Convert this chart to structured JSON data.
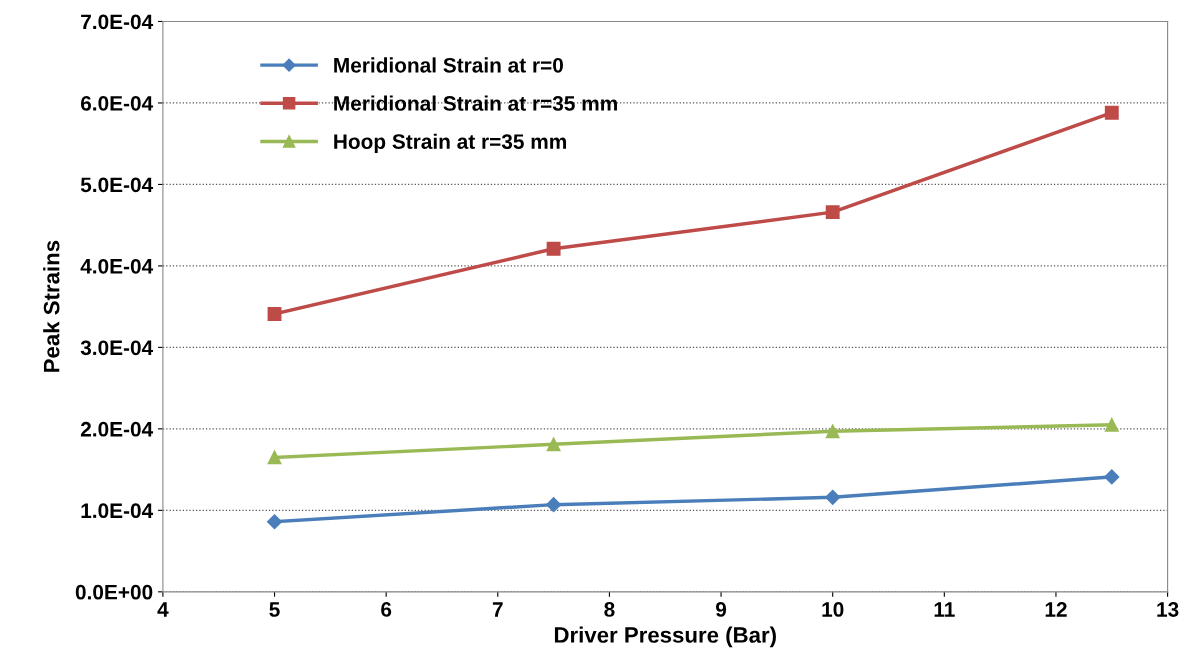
{
  "chart_data": {
    "type": "line",
    "xlabel": "Driver Pressure (Bar)",
    "ylabel": "Peak Strains",
    "x": [
      5,
      7.5,
      10,
      12.5
    ],
    "series": [
      {
        "name": "Meridional Strain at r=0",
        "color": "#4a7ebb",
        "marker": "diamond",
        "values": [
          8.6e-05,
          0.000107,
          0.000116,
          0.000141
        ]
      },
      {
        "name": "Meridional Strain at r=35 mm",
        "color": "#be4b48",
        "marker": "square",
        "values": [
          0.000341,
          0.000421,
          0.000466,
          0.000588
        ]
      },
      {
        "name": "Hoop Strain at r=35 mm",
        "color": "#98b954",
        "marker": "triangle",
        "values": [
          0.000165,
          0.000181,
          0.000197,
          0.000205
        ]
      }
    ],
    "xlim": [
      4,
      13
    ],
    "xticks": [
      4,
      5,
      6,
      7,
      8,
      9,
      10,
      11,
      12,
      13
    ],
    "ylim": [
      0,
      0.0007
    ],
    "yticks": [
      {
        "value": 0,
        "label": "0.0E+00"
      },
      {
        "value": 0.0001,
        "label": "1.0E-04"
      },
      {
        "value": 0.0002,
        "label": "2.0E-04"
      },
      {
        "value": 0.0003,
        "label": "3.0E-04"
      },
      {
        "value": 0.0004,
        "label": "4.0E-04"
      },
      {
        "value": 0.0005,
        "label": "5.0E-04"
      },
      {
        "value": 0.0006,
        "label": "6.0E-04"
      },
      {
        "value": 0.0007,
        "label": "7.0E-04"
      }
    ],
    "grid": "y",
    "legend": "top left",
    "line_style": "solid"
  }
}
